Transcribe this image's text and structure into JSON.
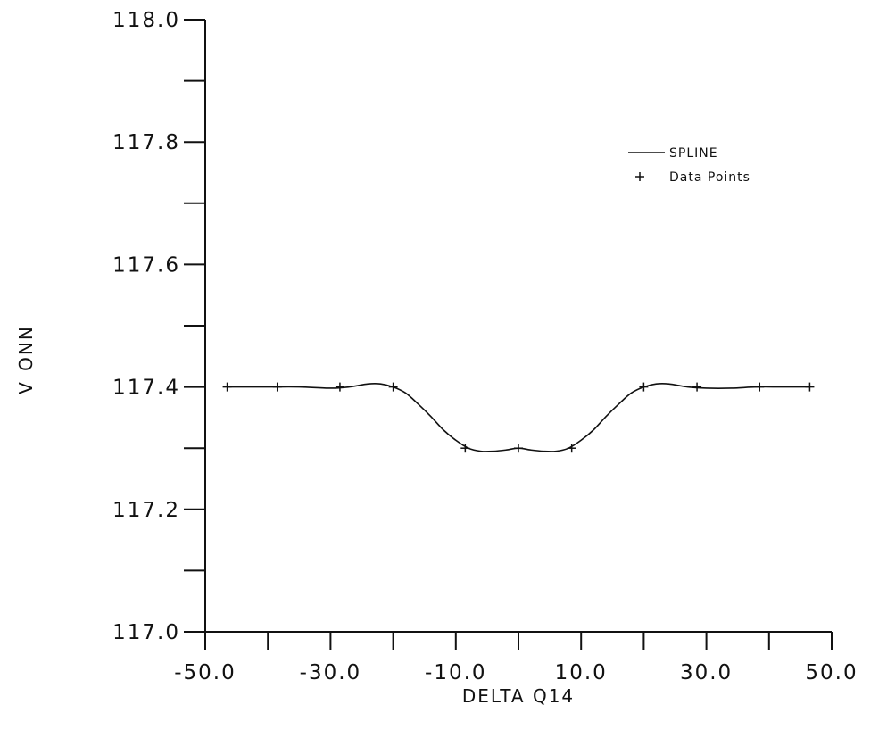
{
  "chart_data": {
    "type": "line",
    "xlabel": "DELTA Q14",
    "ylabel": "V ONN",
    "xlim": [
      -50.0,
      50.0
    ],
    "ylim": [
      117.0,
      118.0
    ],
    "x_major_ticks": [
      -50.0,
      -30.0,
      -10.0,
      10.0,
      30.0,
      50.0
    ],
    "x_minor_ticks": [
      -40.0,
      -20.0,
      0.0,
      20.0,
      40.0
    ],
    "x_tick_labels": [
      "-50.0",
      "-30.0",
      "-10.0",
      "10.0",
      "30.0",
      "50.0"
    ],
    "y_major_ticks": [
      117.0,
      117.2,
      117.4,
      117.6,
      117.8,
      118.0
    ],
    "y_minor_ticks": [
      117.1,
      117.3,
      117.5,
      117.7,
      117.9
    ],
    "y_tick_labels": [
      "117.0",
      "117.2",
      "117.4",
      "117.6",
      "117.8",
      "118.0"
    ],
    "grid": false,
    "legend_position": "top-right",
    "series": [
      {
        "name": "SPLINE",
        "style": "line",
        "x": [
          -46.5,
          -40,
          -35,
          -30,
          -27,
          -24,
          -22,
          -20,
          -18,
          -16,
          -14,
          -12,
          -10,
          -8,
          -6,
          -4,
          -2,
          0,
          2,
          4,
          6,
          8,
          10,
          12,
          14,
          16,
          18,
          20,
          22,
          24,
          27,
          30,
          34,
          38,
          42,
          46.5
        ],
        "values": [
          117.4,
          117.4,
          117.4,
          117.398,
          117.4,
          117.405,
          117.405,
          117.4,
          117.39,
          117.372,
          117.352,
          117.33,
          117.313,
          117.3,
          117.295,
          117.295,
          117.297,
          117.3,
          117.297,
          117.295,
          117.295,
          117.3,
          117.313,
          117.33,
          117.352,
          117.372,
          117.39,
          117.4,
          117.405,
          117.405,
          117.4,
          117.398,
          117.398,
          117.4,
          117.4,
          117.4
        ]
      },
      {
        "name": "Data Points",
        "style": "markers",
        "marker": "+",
        "x": [
          -46.5,
          -38.5,
          -28.5,
          -20,
          -8.5,
          0,
          8.5,
          20,
          28.5,
          38.5,
          46.5
        ],
        "values": [
          117.4,
          117.4,
          117.4,
          117.4,
          117.3,
          117.3,
          117.3,
          117.4,
          117.4,
          117.4,
          117.4
        ]
      }
    ],
    "colors": {
      "line": "#111111",
      "background": "#ffffff"
    }
  }
}
